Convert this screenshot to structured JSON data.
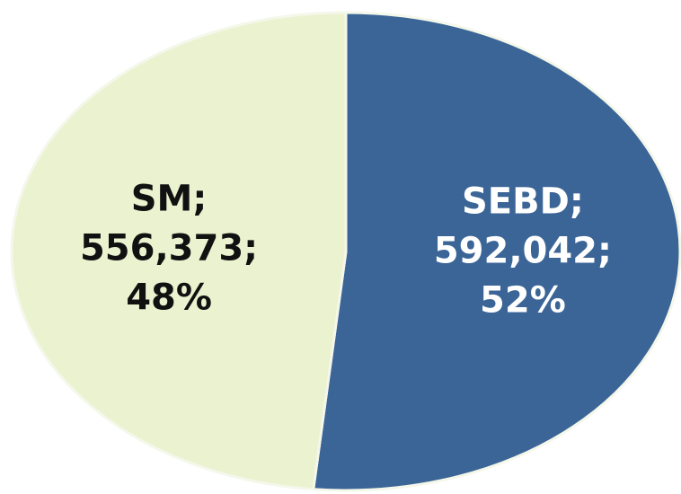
{
  "chart_data": {
    "type": "pie",
    "categories": [
      "SEBD",
      "SM"
    ],
    "values": [
      592042,
      556373
    ],
    "value_labels": [
      "592,042",
      "556,373"
    ],
    "percent_labels": [
      "52%",
      "48%"
    ],
    "label_separator": ";",
    "colors": [
      "#3b6597",
      "#ebf2cf"
    ],
    "label_colors": [
      "#ffffff",
      "#111111"
    ]
  }
}
